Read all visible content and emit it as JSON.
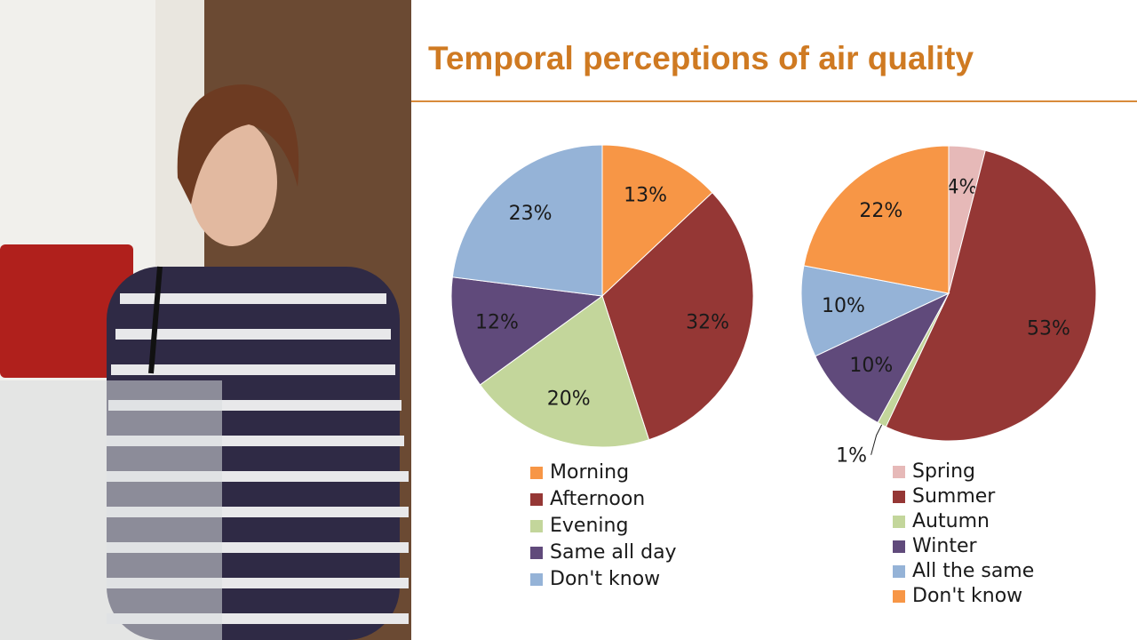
{
  "slide_title": "Temporal perceptions of air quality",
  "chart_data": [
    {
      "type": "pie",
      "categories": [
        "Morning",
        "Afternoon",
        "Evening",
        "Same all day",
        "Don't know"
      ],
      "values": [
        13,
        32,
        20,
        12,
        23
      ],
      "value_labels": [
        "13%",
        "32%",
        "20%",
        "12%",
        "23%"
      ],
      "colors": [
        "#f79646",
        "#953735",
        "#c3d69b",
        "#604a7b",
        "#95b3d7"
      ]
    },
    {
      "type": "pie",
      "categories": [
        "Spring",
        "Summer",
        "Autumn",
        "Winter",
        "All the same",
        "Don't know"
      ],
      "values": [
        4,
        53,
        1,
        10,
        10,
        22
      ],
      "value_labels": [
        "4%",
        "53%",
        "1%",
        "10%",
        "10%",
        "22%"
      ],
      "colors": [
        "#e6b9b8",
        "#953735",
        "#c3d69b",
        "#604a7b",
        "#95b3d7",
        "#f79646"
      ]
    }
  ]
}
